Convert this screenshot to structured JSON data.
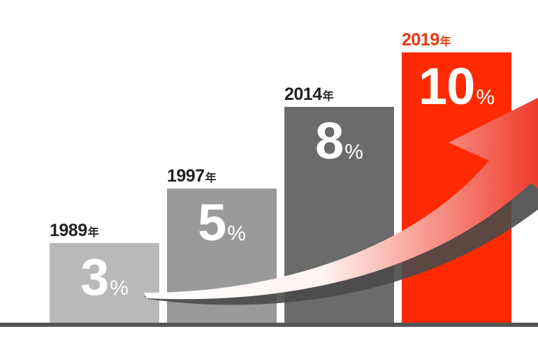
{
  "chart_data": {
    "type": "bar",
    "categories": [
      "1989",
      "1997",
      "2014",
      "2019"
    ],
    "category_suffix": "年",
    "values": [
      3,
      5,
      8,
      10
    ],
    "unit": "%",
    "ylim": [
      0,
      11
    ],
    "grid": false,
    "legend": "none",
    "colors": {
      "bars": [
        "#b9b9b9",
        "#9a9a9a",
        "#6b6b6b",
        "#ff2a00"
      ],
      "year_labels": [
        "#222222",
        "#222222",
        "#222222",
        "#e8380d"
      ],
      "baseline": "#555555",
      "arrow_start": "#ffffff",
      "arrow_end": "#ef3b2b"
    },
    "annotations": [
      {
        "type": "rising-arrow",
        "from": "1989",
        "to": "2019"
      }
    ]
  }
}
